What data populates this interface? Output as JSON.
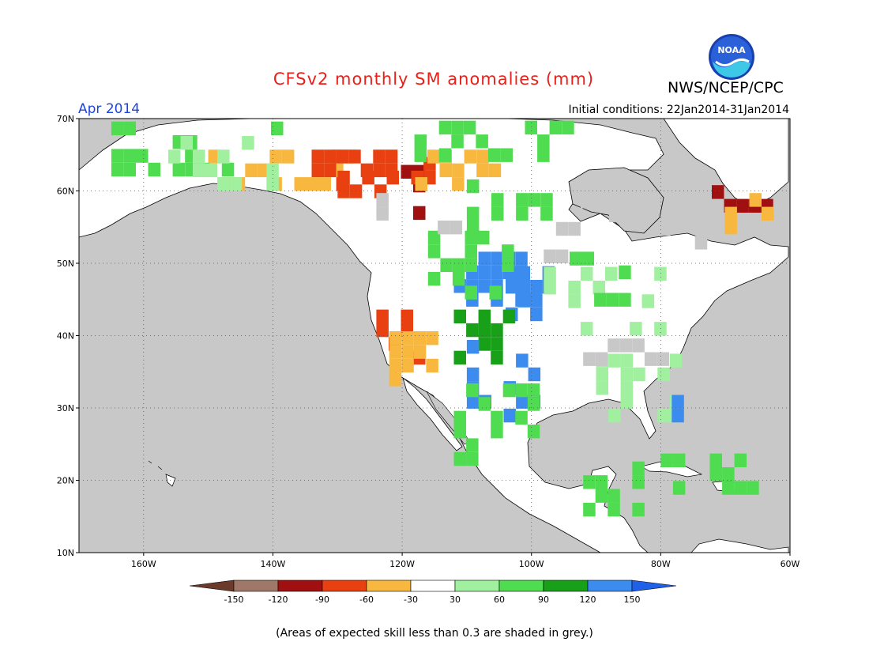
{
  "header": {
    "title": "CFSv2 monthly SM anomalies (mm)",
    "agency": "NWS/NCEP/CPC",
    "logo_text": "NOAA",
    "period": "Apr 2014",
    "initial_conditions": "Initial conditions: 22Jan2014-31Jan2014"
  },
  "map": {
    "projection": "lat-lon",
    "lon_range": [
      -170,
      -60
    ],
    "lat_range": [
      10,
      70
    ],
    "lat_ticks": [
      {
        "value": 70,
        "label": "70N"
      },
      {
        "value": 60,
        "label": "60N"
      },
      {
        "value": 50,
        "label": "50N"
      },
      {
        "value": 40,
        "label": "40N"
      },
      {
        "value": 30,
        "label": "30N"
      },
      {
        "value": 20,
        "label": "20N"
      },
      {
        "value": 10,
        "label": "10N"
      }
    ],
    "lon_ticks": [
      {
        "value": -160,
        "label": "160W"
      },
      {
        "value": -140,
        "label": "140W"
      },
      {
        "value": -120,
        "label": "120W"
      },
      {
        "value": -100,
        "label": "100W"
      },
      {
        "value": -80,
        "label": "80W"
      },
      {
        "value": -60,
        "label": "60W"
      }
    ],
    "ocean_color": "#c8c8c8",
    "land_color": "#ffffff",
    "grid_style": "dotted"
  },
  "colorbar": {
    "levels": [
      "-150",
      "-120",
      "-90",
      "-60",
      "-30",
      "30",
      "60",
      "90",
      "120",
      "150"
    ],
    "colors": [
      "#6b3a2a",
      "#a0786a",
      "#a01010",
      "#e84010",
      "#f8b840",
      "#ffffff",
      "#a0f0a0",
      "#50dc50",
      "#18a018",
      "#3c8cf0",
      "#2060e8"
    ]
  },
  "footnote": "(Areas of expected skill less than 0.3 are shaded in grey.)"
}
